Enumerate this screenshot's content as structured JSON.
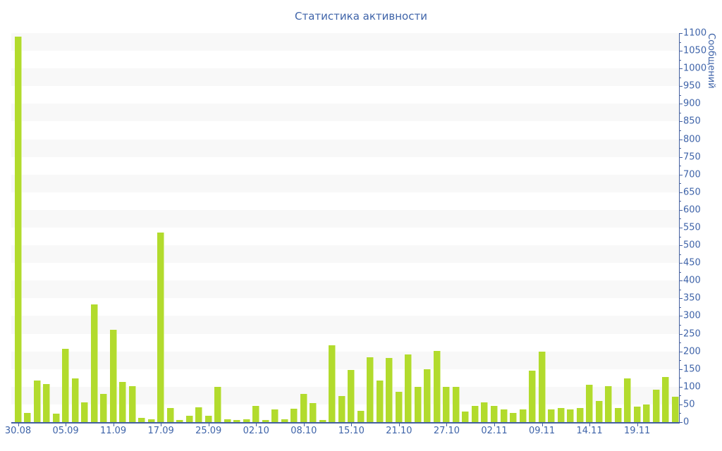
{
  "title": "Статистика активности",
  "colors": {
    "bar": "#b2db2d",
    "bar_highlight": "#d9ee96",
    "axis": "#44609f",
    "text": "#3f64a9",
    "band": "#f8f8f8",
    "background": "#ffffff"
  },
  "chart_data": {
    "type": "bar",
    "title": "Статистика активности",
    "xlabel": "",
    "ylabel": "Сообщений",
    "y_min": 0,
    "y_max": 1100,
    "y_step": 50,
    "y_minor_step": 25,
    "y_axis_side": "right",
    "grid": "alternating horizontal bands every 50 units",
    "legend": "none",
    "x_tick_labels": [
      "30.08",
      "05.09",
      "11.09",
      "17.09",
      "25.09",
      "02.10",
      "08.10",
      "15.10",
      "21.10",
      "27.10",
      "02.11",
      "09.11",
      "14.11",
      "19.11"
    ],
    "x_tick_indices": [
      0,
      5,
      10,
      15,
      20,
      25,
      30,
      35,
      40,
      45,
      50,
      55,
      60,
      65
    ],
    "values": [
      1090,
      25,
      118,
      108,
      24,
      207,
      123,
      56,
      332,
      80,
      262,
      113,
      102,
      12,
      8,
      537,
      40,
      6,
      18,
      42,
      17,
      100,
      8,
      6,
      7,
      45,
      5,
      36,
      8,
      37,
      80,
      53,
      5,
      218,
      74,
      148,
      32,
      183,
      118,
      181,
      85,
      192,
      100,
      150,
      201,
      100,
      100,
      30,
      45,
      55,
      46,
      36,
      25,
      36,
      146,
      200,
      35,
      39,
      35,
      40,
      106,
      60,
      102,
      40,
      123,
      43,
      50,
      92,
      128,
      72
    ]
  }
}
